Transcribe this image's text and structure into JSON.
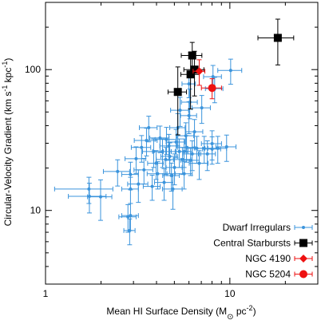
{
  "chart_data": {
    "type": "scatter",
    "xlabel": [
      "Mean HI Surface Density (M",
      "⊙",
      " pc",
      "-2",
      ")"
    ],
    "ylabel": [
      "Circular-Velocity Gradient (km s",
      "-1",
      " kpc",
      "-1",
      ")"
    ],
    "log_x": true,
    "log_y": true,
    "xlim": [
      1,
      30
    ],
    "ylim": [
      3,
      300
    ],
    "xticks": [
      1,
      10
    ],
    "yticks": [
      10,
      100
    ],
    "xticks_minor": [
      2,
      3,
      4,
      5,
      6,
      7,
      8,
      9,
      20,
      30
    ],
    "yticks_minor": [
      3,
      4,
      5,
      6,
      7,
      8,
      9,
      20,
      30,
      40,
      50,
      60,
      70,
      80,
      90,
      200,
      300
    ],
    "legend": "lower right",
    "series": [
      {
        "name": "Dwarf Irregulars",
        "color": "#3b94dc",
        "marker": "dot",
        "x": [
          1.72,
          1.73,
          1.99,
          2.46,
          2.89,
          2.89,
          2.8,
          2.86,
          2.89,
          3.1,
          3.19,
          3.32,
          3.42,
          3.53,
          3.63,
          3.79,
          3.86,
          3.98,
          4.06,
          4.18,
          4.31,
          4.4,
          4.49,
          4.53,
          4.67,
          4.72,
          4.82,
          4.91,
          5.01,
          5.11,
          5.22,
          5.32,
          5.37,
          5.54,
          5.65,
          5.77,
          5.82,
          6.0,
          6.0,
          6.12,
          6.25,
          6.43,
          6.62,
          6.82,
          7.04,
          7.26,
          7.55,
          8.01,
          8.6,
          9.6,
          10.1,
          8.1,
          8.27,
          8.01,
          5.65,
          6.06
        ],
        "values": [
          14.2,
          12.6,
          12.5,
          18.9,
          14.2,
          18.0,
          9.0,
          7.2,
          9.2,
          23.3,
          15.4,
          28.0,
          19.4,
          31.4,
          38.7,
          14.8,
          26.2,
          21.6,
          18.2,
          32.7,
          26.2,
          15.8,
          23.0,
          31.9,
          28.7,
          24.2,
          17.7,
          14.2,
          20.2,
          30.6,
          38.7,
          26.2,
          51.5,
          23.0,
          18.2,
          33.9,
          28.0,
          79.1,
          47.1,
          22.7,
          25.2,
          36.2,
          27.6,
          21.6,
          53.5,
          27.6,
          25.2,
          29.8,
          27.6,
          28.3,
          98.7,
          89.0,
          73.2,
          27.3,
          26.2,
          58.7
        ],
        "xerr": [
          0.6,
          0.4,
          0.3,
          0.4,
          0.3,
          0.3,
          0.3,
          0.2,
          0.3,
          0.4,
          0.4,
          0.4,
          0.4,
          0.5,
          0.4,
          0.4,
          0.5,
          0.4,
          0.5,
          0.5,
          0.5,
          0.5,
          0.5,
          0.6,
          0.5,
          0.5,
          0.5,
          0.6,
          0.5,
          0.6,
          0.5,
          0.6,
          0.6,
          0.6,
          0.6,
          0.6,
          0.6,
          0.5,
          0.6,
          0.7,
          0.7,
          0.7,
          0.7,
          0.8,
          0.8,
          0.8,
          0.8,
          1.0,
          1.0,
          1.2,
          1.5,
          0.9,
          0.9,
          0.9,
          0.6,
          0.6
        ],
        "yerr": [
          3,
          3,
          4,
          4,
          3,
          4,
          2,
          1.5,
          2,
          5,
          4,
          6,
          4,
          7,
          8,
          3,
          6,
          5,
          4,
          7,
          6,
          4,
          5,
          7,
          6,
          6,
          4,
          4,
          5,
          7,
          10,
          6,
          12,
          5,
          4,
          8,
          6,
          16,
          12,
          5,
          6,
          8,
          6,
          5,
          12,
          6,
          6,
          7,
          6,
          6,
          20,
          18,
          15,
          6,
          6,
          14
        ]
      },
      {
        "name": "Central Starbursts",
        "color": "#000000",
        "marker": "square",
        "x": [
          5.22,
          6.25,
          6.12,
          6.43,
          18.2
        ],
        "values": [
          69.4,
          126,
          92.5,
          100,
          168
        ],
        "xerr": [
          0.6,
          0.8,
          0.7,
          0.8,
          4
        ],
        "yerr": [
          35,
          30,
          40,
          35,
          60
        ]
      },
      {
        "name": "NGC 4190",
        "color": "#ee1111",
        "marker": "diamond",
        "x": [
          6.82
        ],
        "values": [
          97.4
        ],
        "xerr": [
          0.5
        ],
        "yerr": [
          20
        ]
      },
      {
        "name": "NGC 5204",
        "color": "#ee1111",
        "marker": "circle",
        "x": [
          8.01
        ],
        "values": [
          74.1
        ],
        "xerr": [
          1.0
        ],
        "yerr": [
          12
        ]
      }
    ]
  }
}
